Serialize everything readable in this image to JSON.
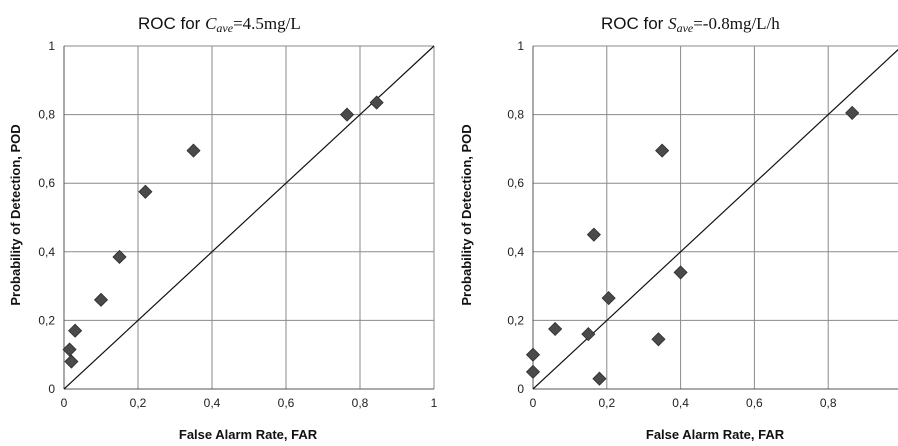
{
  "chart_data": [
    {
      "type": "scatter",
      "title": {
        "prefix": "ROC for ",
        "symbol": "C",
        "subscript": "ave",
        "suffix": "=4.5mg/L"
      },
      "xlabel": "False Alarm Rate, FAR",
      "ylabel": "Probability of Detection, POD",
      "xlim": [
        0,
        1
      ],
      "ylim": [
        0,
        1
      ],
      "xticks": [
        "0",
        "0,2",
        "0,4",
        "0,6",
        "0,8",
        "1"
      ],
      "yticks": [
        "0",
        "0,2",
        "0,4",
        "0,6",
        "0,8",
        "1"
      ],
      "grid": true,
      "diagonal": true,
      "points": [
        {
          "x": 0.02,
          "y": 0.08
        },
        {
          "x": 0.015,
          "y": 0.115
        },
        {
          "x": 0.03,
          "y": 0.17
        },
        {
          "x": 0.1,
          "y": 0.26
        },
        {
          "x": 0.15,
          "y": 0.385
        },
        {
          "x": 0.22,
          "y": 0.575
        },
        {
          "x": 0.35,
          "y": 0.695
        },
        {
          "x": 0.765,
          "y": 0.8
        },
        {
          "x": 0.845,
          "y": 0.835
        }
      ]
    },
    {
      "type": "scatter",
      "title": {
        "prefix": "ROC for ",
        "symbol": "S",
        "subscript": "ave",
        "suffix": "=-0.8mg/L/h"
      },
      "xlabel": "False Alarm Rate, FAR",
      "ylabel": "Probability of Detection, POD",
      "xlim": [
        0,
        1
      ],
      "ylim": [
        0,
        1
      ],
      "xticks": [
        "0",
        "0,2",
        "0,4",
        "0,6",
        "0,8",
        ""
      ],
      "yticks": [
        "0",
        "0,2",
        "0,4",
        "0,6",
        "0,8",
        "1"
      ],
      "grid": true,
      "diagonal": true,
      "points": [
        {
          "x": 0.0,
          "y": 0.1
        },
        {
          "x": 0.0,
          "y": 0.05
        },
        {
          "x": 0.06,
          "y": 0.175
        },
        {
          "x": 0.15,
          "y": 0.16
        },
        {
          "x": 0.165,
          "y": 0.45
        },
        {
          "x": 0.18,
          "y": 0.03
        },
        {
          "x": 0.205,
          "y": 0.265
        },
        {
          "x": 0.34,
          "y": 0.145
        },
        {
          "x": 0.35,
          "y": 0.695
        },
        {
          "x": 0.4,
          "y": 0.34
        },
        {
          "x": 0.865,
          "y": 0.805
        }
      ]
    }
  ]
}
